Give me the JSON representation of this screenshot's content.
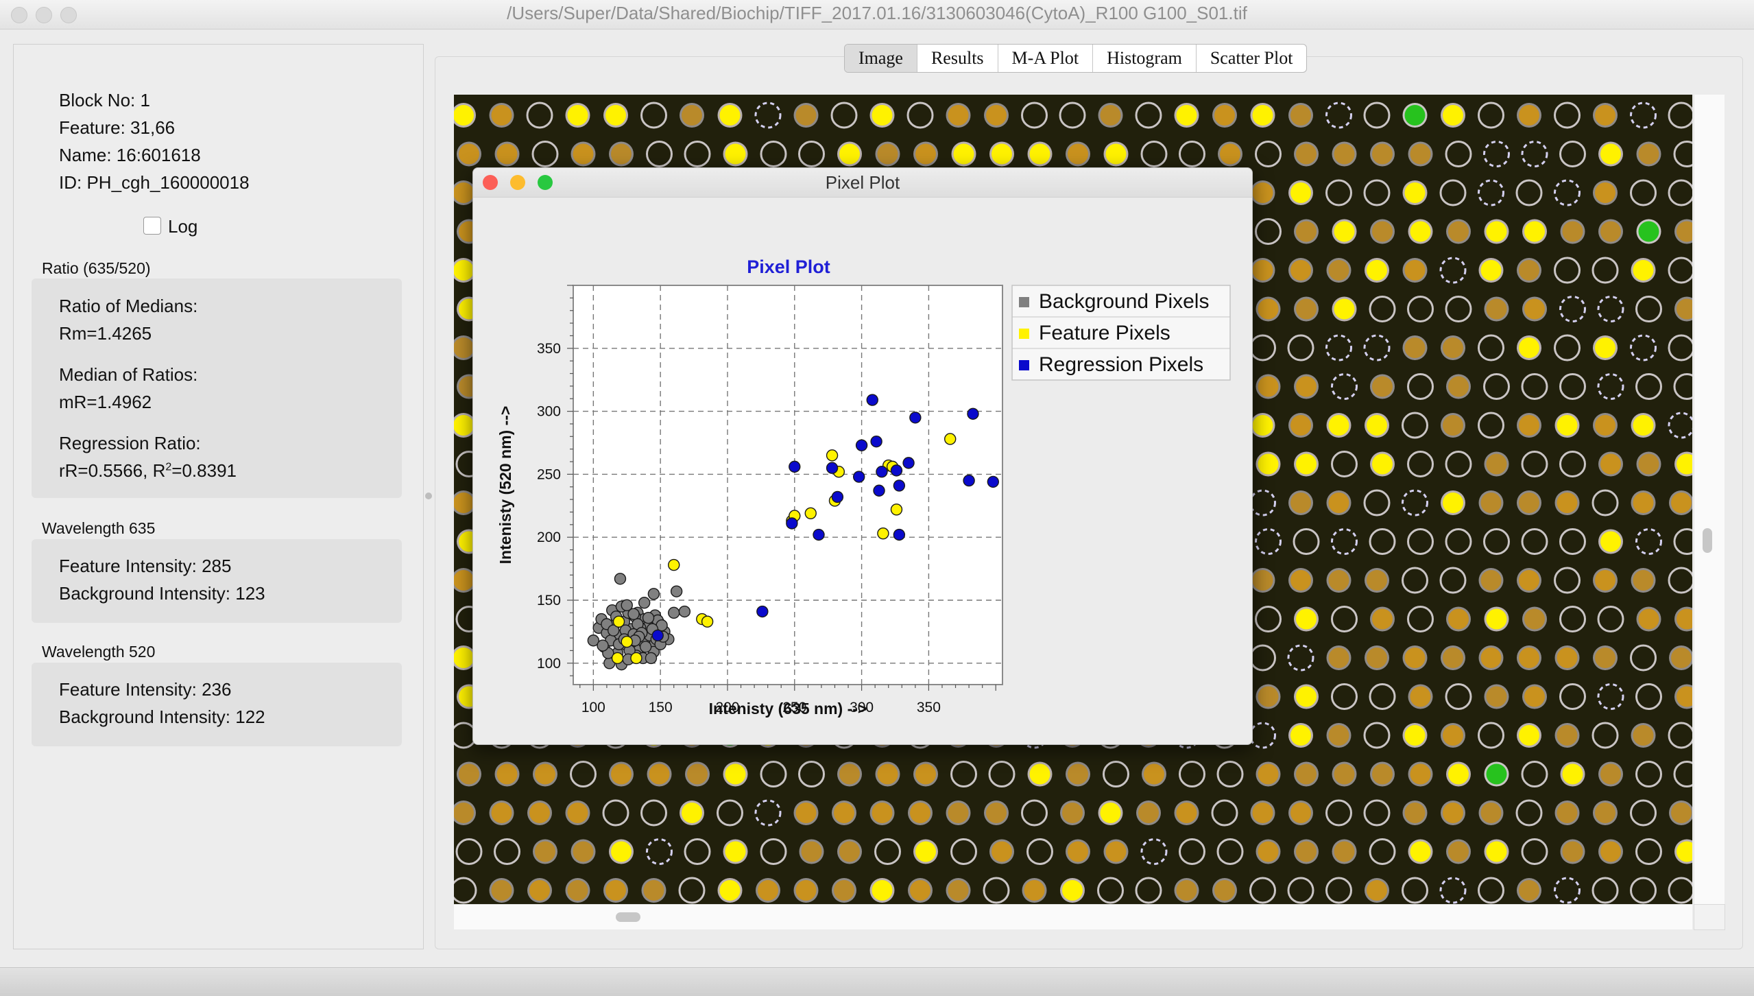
{
  "window": {
    "title": "/Users/Super/Data/Shared/Biochip/TIFF_2017.01.16/3130603046(CytoA)_R100 G100_S01.tif"
  },
  "info": {
    "block": "Block No: 1",
    "feature": "Feature: 31,66",
    "name": "Name: 16:601618",
    "id": "ID: PH_cgh_160000018",
    "log_label": "Log",
    "log_checked": false
  },
  "ratio": {
    "title": "Ratio (635/520)",
    "medians_label": "Ratio of Medians:",
    "medians_value": "Rm=1.4265",
    "ratios_label": "Median of Ratios:",
    "ratios_value": "mR=1.4962",
    "regression_label": "Regression Ratio:",
    "regression_prefix": "rR=0.5566, R",
    "regression_sup": "2",
    "regression_suffix": "=0.8391"
  },
  "w635": {
    "title": "Wavelength 635",
    "feature": "Feature Intensity: 285",
    "background": "Background Intensity: 123"
  },
  "w520": {
    "title": "Wavelength 520",
    "feature": "Feature Intensity: 236",
    "background": "Background Intensity: 122"
  },
  "tabs": [
    {
      "label": "Image",
      "active": true
    },
    {
      "label": "Results",
      "active": false
    },
    {
      "label": "M-A Plot",
      "active": false
    },
    {
      "label": "Histogram",
      "active": false
    },
    {
      "label": "Scatter Plot",
      "active": false
    }
  ],
  "popup": {
    "title": "Pixel Plot",
    "close_color": "#fc5f57",
    "minimize_color": "#fdbc2e",
    "zoom_color": "#28c840"
  },
  "colors": {
    "plot_title": "#1f1fd6",
    "feature_yellow": "#fff200",
    "regression_blue": "#0a0acc",
    "background_gray": "#808080",
    "image_bg": "#21200c"
  },
  "chart_data": {
    "type": "scatter",
    "title": "Pixel Plot",
    "xlabel": "Intenisty (635 nm) -->",
    "ylabel": "Intenisty (520 nm) -->",
    "xlim": [
      85,
      405
    ],
    "ylim": [
      83,
      400
    ],
    "xticks": [
      100,
      150,
      200,
      250,
      300,
      350
    ],
    "yticks": [
      100,
      150,
      200,
      250,
      300,
      350
    ],
    "grid": true,
    "legend_position": "right",
    "legend": [
      "Background Pixels",
      "Feature Pixels",
      "Regression Pixels"
    ],
    "series": [
      {
        "name": "Background Pixels",
        "color": "#808080",
        "points": [
          [
            120,
            167
          ],
          [
            128,
            108
          ],
          [
            133,
            140
          ],
          [
            138,
            135
          ],
          [
            138,
            148
          ],
          [
            140,
            130
          ],
          [
            145,
            155
          ],
          [
            108,
            113
          ],
          [
            112,
            100
          ],
          [
            118,
            108
          ],
          [
            121,
            99
          ],
          [
            125,
            114
          ],
          [
            128,
            127
          ],
          [
            131,
            137
          ],
          [
            134,
            112
          ],
          [
            137,
            120
          ],
          [
            141,
            129
          ],
          [
            143,
            115
          ],
          [
            146,
            138
          ],
          [
            149,
            132
          ],
          [
            153,
            125
          ],
          [
            156,
            119
          ],
          [
            104,
            128
          ],
          [
            106,
            135
          ],
          [
            110,
            124
          ],
          [
            114,
            142
          ],
          [
            116,
            131
          ],
          [
            119,
            122
          ],
          [
            123,
            133
          ],
          [
            126,
            140
          ],
          [
            129,
            117
          ],
          [
            132,
            106
          ],
          [
            135,
            128
          ],
          [
            138,
            116
          ],
          [
            142,
            122
          ],
          [
            145,
            109
          ],
          [
            148,
            134
          ],
          [
            151,
            130
          ],
          [
            113,
            118
          ],
          [
            117,
            137
          ],
          [
            121,
            145
          ],
          [
            124,
            126
          ],
          [
            127,
            110
          ],
          [
            130,
            123
          ],
          [
            133,
            131
          ],
          [
            136,
            124
          ],
          [
            139,
            113
          ],
          [
            144,
            127
          ],
          [
            147,
            119
          ],
          [
            150,
            115
          ],
          [
            110,
            131
          ],
          [
            115,
            126
          ],
          [
            119,
            115
          ],
          [
            123,
            119
          ],
          [
            126,
            103
          ],
          [
            130,
            139
          ],
          [
            134,
            121
          ],
          [
            137,
            104
          ],
          [
            141,
            136
          ],
          [
            152,
            121
          ],
          [
            160,
            140
          ],
          [
            162,
            157
          ],
          [
            168,
            141
          ],
          [
            100,
            118
          ],
          [
            111,
            108
          ],
          [
            107,
            114
          ],
          [
            125,
            146
          ],
          [
            131,
            118
          ],
          [
            143,
            104
          ]
        ]
      },
      {
        "name": "Feature Pixels",
        "color": "#fff200",
        "points": [
          [
            119,
            133
          ],
          [
            125,
            117
          ],
          [
            118,
            104
          ],
          [
            132,
            104
          ],
          [
            160,
            178
          ],
          [
            181,
            135
          ],
          [
            185,
            133
          ],
          [
            248,
            213
          ],
          [
            250,
            217
          ],
          [
            262,
            219
          ],
          [
            278,
            265
          ],
          [
            283,
            252
          ],
          [
            280,
            229
          ],
          [
            316,
            203
          ],
          [
            320,
            257
          ],
          [
            323,
            256
          ],
          [
            326,
            222
          ],
          [
            366,
            278
          ]
        ]
      },
      {
        "name": "Regression Pixels",
        "color": "#0a0acc",
        "points": [
          [
            148,
            122
          ],
          [
            226,
            141
          ],
          [
            248,
            211
          ],
          [
            250,
            256
          ],
          [
            268,
            202
          ],
          [
            278,
            255
          ],
          [
            282,
            232
          ],
          [
            298,
            248
          ],
          [
            300,
            273
          ],
          [
            308,
            309
          ],
          [
            311,
            276
          ],
          [
            313,
            237
          ],
          [
            315,
            252
          ],
          [
            326,
            253
          ],
          [
            328,
            241
          ],
          [
            328,
            202
          ],
          [
            335,
            259
          ],
          [
            340,
            295
          ],
          [
            380,
            245
          ],
          [
            383,
            298
          ],
          [
            398,
            244
          ]
        ]
      }
    ]
  }
}
